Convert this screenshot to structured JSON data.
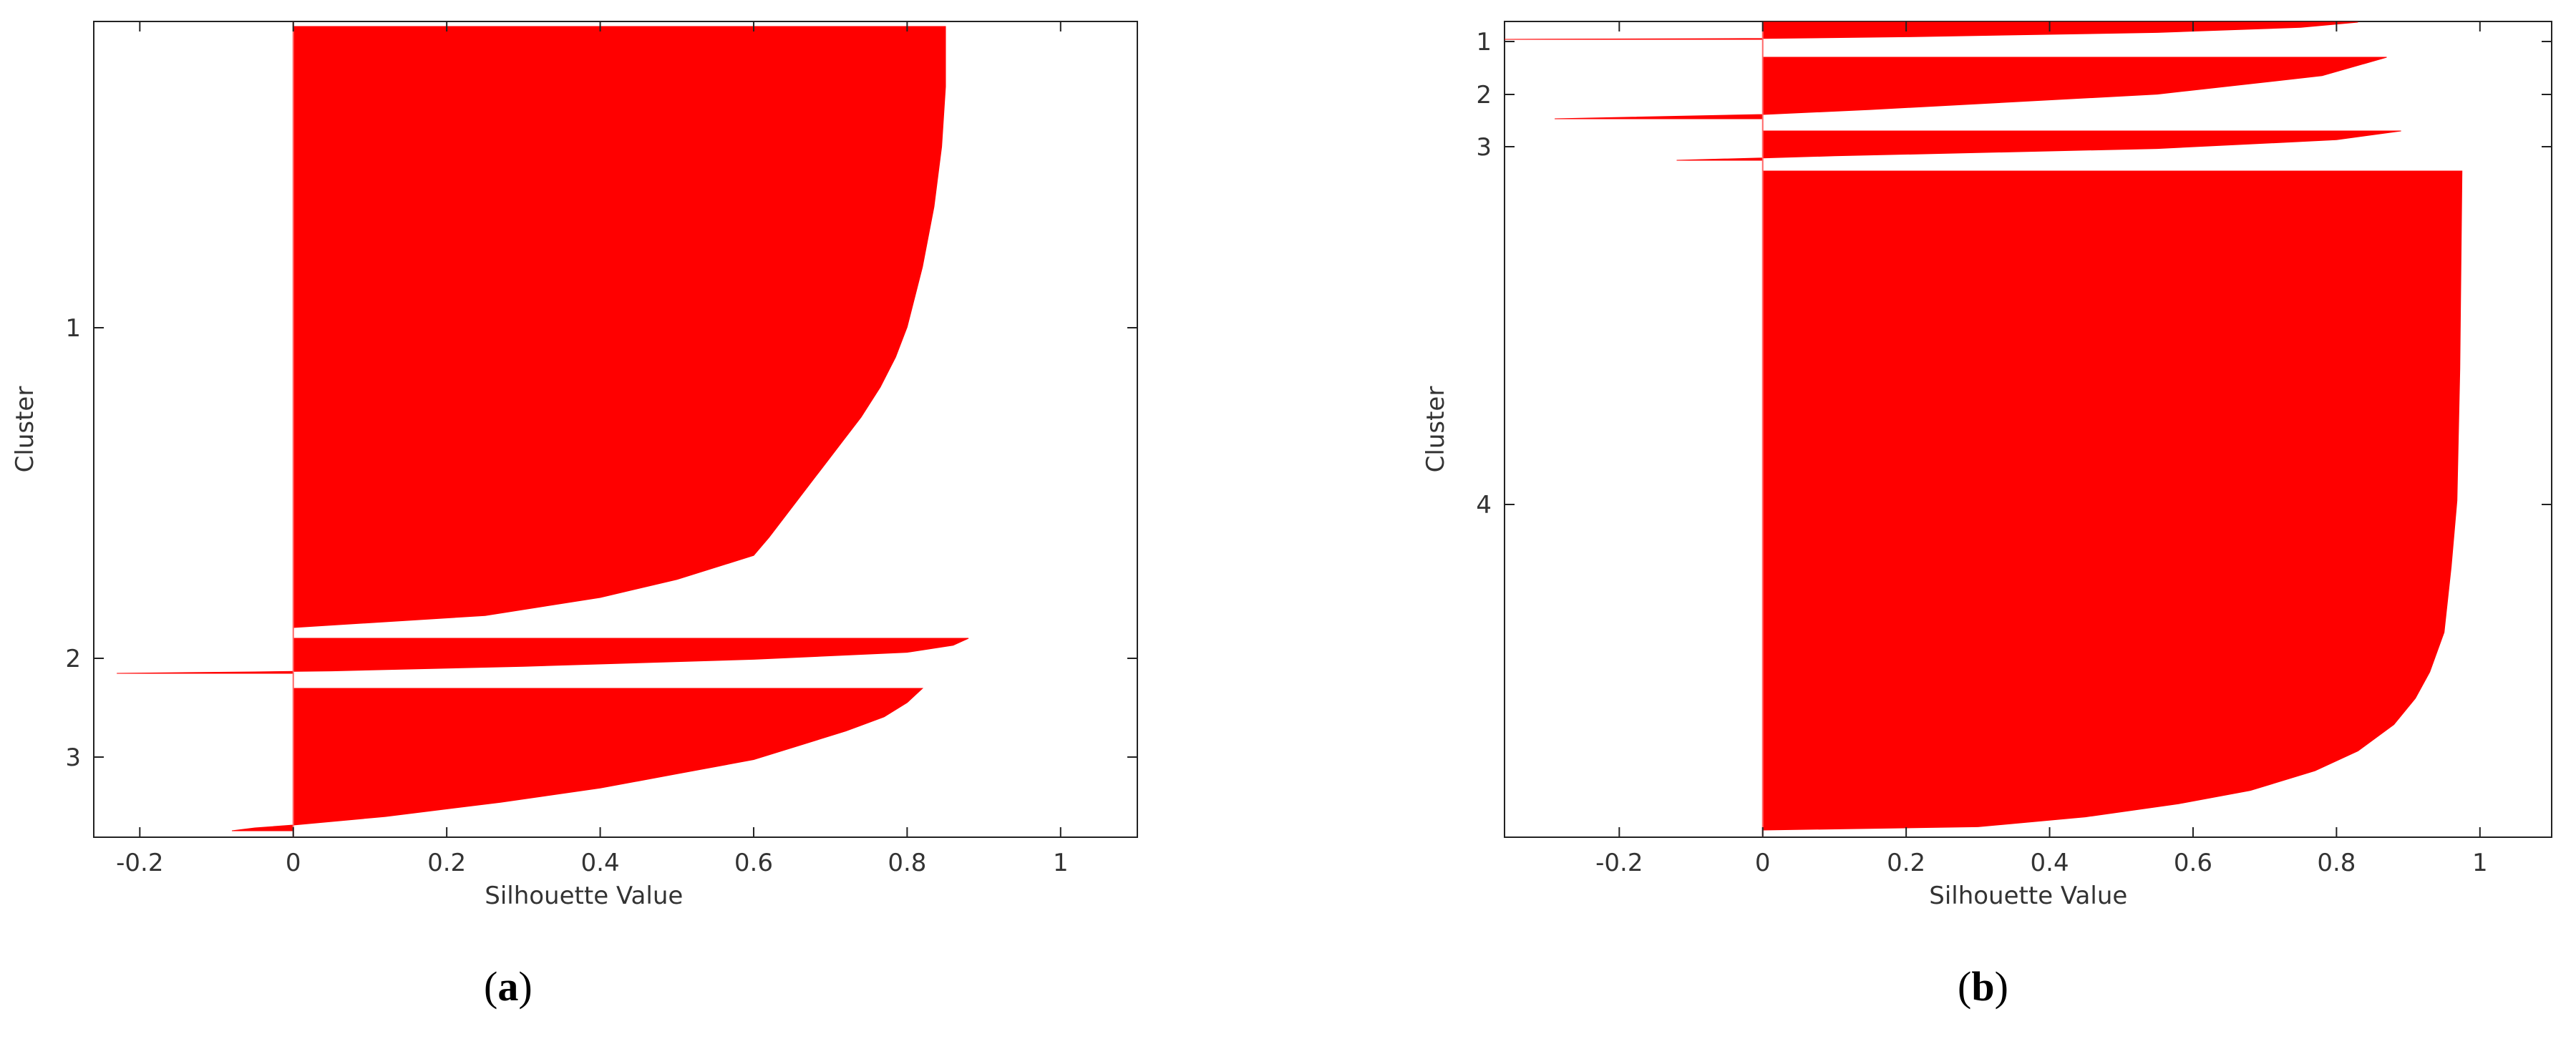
{
  "chart_data": [
    {
      "type": "silhouette",
      "panel_label": "a",
      "xlabel": "Silhouette Value",
      "ylabel": "Cluster",
      "xlim": [
        -0.26,
        1.1
      ],
      "xticks": [
        -0.2,
        0,
        0.2,
        0.4,
        0.6,
        0.8,
        1
      ],
      "xtick_labels": [
        "-0.2",
        "0",
        "0.2",
        "0.4",
        "0.6",
        "0.8",
        "1"
      ],
      "color": "#ff0000",
      "clusters": [
        {
          "label": "1",
          "profile": [
            [
              0,
              0.85
            ],
            [
              0.1,
              0.85
            ],
            [
              0.2,
              0.845
            ],
            [
              0.3,
              0.835
            ],
            [
              0.4,
              0.82
            ],
            [
              0.5,
              0.8
            ],
            [
              0.55,
              0.785
            ],
            [
              0.6,
              0.765
            ],
            [
              0.65,
              0.74
            ],
            [
              0.7,
              0.71
            ],
            [
              0.75,
              0.68
            ],
            [
              0.8,
              0.65
            ],
            [
              0.85,
              0.62
            ],
            [
              0.88,
              0.6
            ],
            [
              0.92,
              0.5
            ],
            [
              0.95,
              0.4
            ],
            [
              0.98,
              0.25
            ],
            [
              1,
              0.0
            ]
          ]
        },
        {
          "label": "2",
          "profile": [
            [
              0,
              0.88
            ],
            [
              0.2,
              0.86
            ],
            [
              0.4,
              0.8
            ],
            [
              0.6,
              0.6
            ],
            [
              0.8,
              0.3
            ],
            [
              0.93,
              0.05
            ],
            [
              0.96,
              -0.05
            ],
            [
              1,
              -0.23
            ]
          ]
        },
        {
          "label": "3",
          "profile": [
            [
              0,
              0.82
            ],
            [
              0.1,
              0.8
            ],
            [
              0.2,
              0.77
            ],
            [
              0.3,
              0.72
            ],
            [
              0.4,
              0.66
            ],
            [
              0.5,
              0.6
            ],
            [
              0.6,
              0.5
            ],
            [
              0.7,
              0.4
            ],
            [
              0.8,
              0.27
            ],
            [
              0.9,
              0.12
            ],
            [
              0.96,
              0.0
            ],
            [
              0.98,
              -0.05
            ],
            [
              1,
              -0.08
            ]
          ]
        }
      ]
    },
    {
      "type": "silhouette",
      "panel_label": "b",
      "xlabel": "Silhouette Value",
      "ylabel": "Cluster",
      "xlim": [
        -0.36,
        1.1
      ],
      "xticks": [
        -0.2,
        0,
        0.2,
        0.4,
        0.6,
        0.8,
        1
      ],
      "xtick_labels": [
        "-0.2",
        "0",
        "0.2",
        "0.4",
        "0.6",
        "0.8",
        "1"
      ],
      "color": "#ff0000",
      "clusters": [
        {
          "label": "1",
          "profile": [
            [
              0,
              0.83
            ],
            [
              0.3,
              0.75
            ],
            [
              0.6,
              0.55
            ],
            [
              0.85,
              0.2
            ],
            [
              0.95,
              0.0
            ],
            [
              1,
              -0.36
            ]
          ]
        },
        {
          "label": "2",
          "profile": [
            [
              0,
              0.87
            ],
            [
              0.3,
              0.78
            ],
            [
              0.6,
              0.55
            ],
            [
              0.85,
              0.15
            ],
            [
              0.93,
              0.0
            ],
            [
              1,
              -0.29
            ]
          ]
        },
        {
          "label": "3",
          "profile": [
            [
              0,
              0.89
            ],
            [
              0.3,
              0.8
            ],
            [
              0.6,
              0.55
            ],
            [
              0.85,
              0.1
            ],
            [
              0.92,
              0.0
            ],
            [
              1,
              -0.12
            ]
          ]
        },
        {
          "label": "4",
          "profile": [
            [
              0,
              0.975
            ],
            [
              0.3,
              0.972
            ],
            [
              0.5,
              0.968
            ],
            [
              0.6,
              0.96
            ],
            [
              0.7,
              0.95
            ],
            [
              0.76,
              0.93
            ],
            [
              0.8,
              0.91
            ],
            [
              0.84,
              0.88
            ],
            [
              0.88,
              0.83
            ],
            [
              0.91,
              0.77
            ],
            [
              0.94,
              0.68
            ],
            [
              0.96,
              0.58
            ],
            [
              0.98,
              0.45
            ],
            [
              0.995,
              0.3
            ],
            [
              1,
              0.0
            ]
          ]
        }
      ]
    }
  ]
}
